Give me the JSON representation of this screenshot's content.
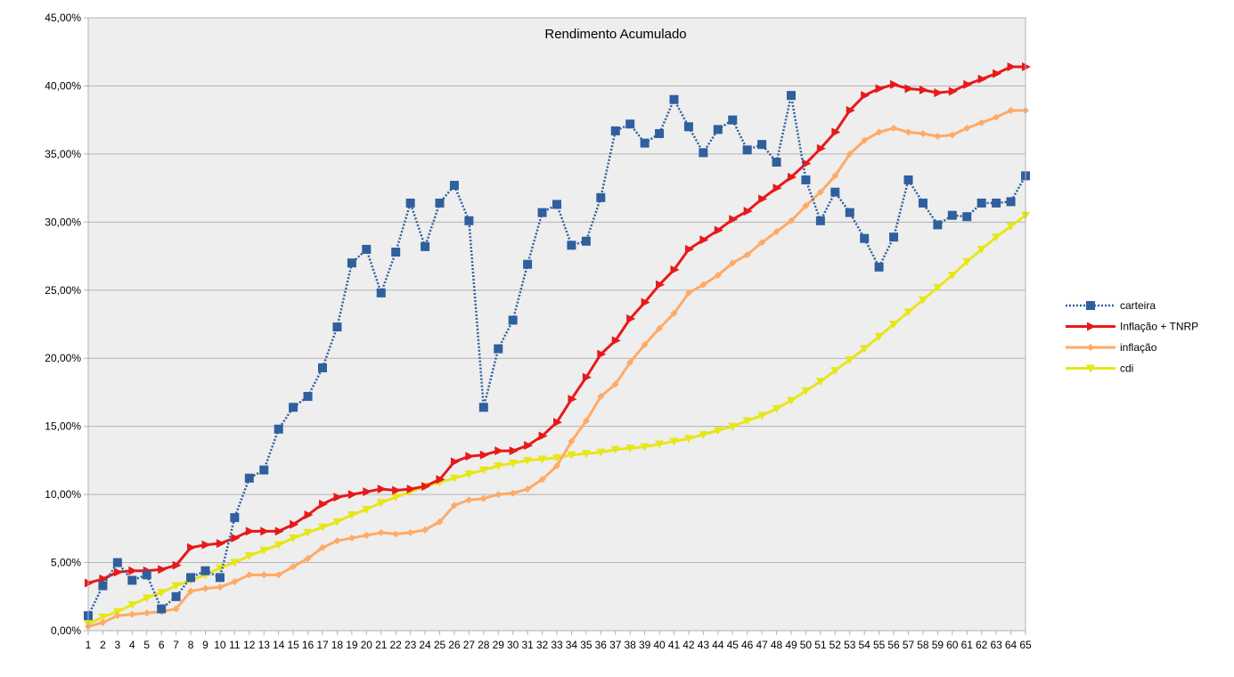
{
  "chart_data": {
    "type": "line",
    "title": "Rendimento Acumulado",
    "xlabel": "",
    "ylabel": "",
    "ylim": [
      0,
      45
    ],
    "ytick_step": 5,
    "y_tick_labels": [
      "0,00%",
      "5,00%",
      "10,00%",
      "15,00%",
      "20,00%",
      "25,00%",
      "30,00%",
      "35,00%",
      "40,00%",
      "45,00%"
    ],
    "grid": true,
    "legend_position": "right",
    "x": [
      1,
      2,
      3,
      4,
      5,
      6,
      7,
      8,
      9,
      10,
      11,
      12,
      13,
      14,
      15,
      16,
      17,
      18,
      19,
      20,
      21,
      22,
      23,
      24,
      25,
      26,
      27,
      28,
      29,
      30,
      31,
      32,
      33,
      34,
      35,
      36,
      37,
      38,
      39,
      40,
      41,
      42,
      43,
      44,
      45,
      46,
      47,
      48,
      49,
      50,
      51,
      52,
      53,
      54,
      55,
      56,
      57,
      58,
      59,
      60,
      61,
      62,
      63,
      64,
      65
    ],
    "series": [
      {
        "name": "carteira",
        "color": "#2f5f9e",
        "marker": "square",
        "dashed": true,
        "values": [
          1.1,
          3.3,
          5.0,
          3.7,
          4.1,
          1.6,
          2.5,
          3.9,
          4.4,
          3.9,
          8.3,
          11.2,
          11.8,
          14.8,
          16.4,
          17.2,
          19.3,
          22.3,
          27.0,
          28.0,
          24.8,
          27.8,
          31.4,
          28.2,
          31.4,
          32.7,
          30.1,
          16.4,
          20.7,
          22.8,
          26.9,
          30.7,
          31.3,
          28.3,
          28.6,
          31.8,
          36.7,
          37.2,
          35.8,
          36.5,
          39.0,
          37.0,
          35.1,
          36.8,
          37.5,
          35.3,
          35.7,
          34.4,
          39.3,
          33.1,
          30.1,
          32.2,
          30.7,
          28.8,
          26.7,
          28.9,
          33.1,
          31.4,
          29.8,
          30.5,
          30.4,
          31.4,
          31.4,
          31.5,
          33.4
        ]
      },
      {
        "name": "Inflação + TNRP",
        "color": "#e8191a",
        "marker": "triangle-right",
        "dashed": false,
        "values": [
          3.5,
          3.8,
          4.3,
          4.4,
          4.4,
          4.5,
          4.8,
          6.1,
          6.3,
          6.4,
          6.8,
          7.3,
          7.3,
          7.3,
          7.8,
          8.5,
          9.3,
          9.8,
          10.0,
          10.2,
          10.4,
          10.3,
          10.4,
          10.6,
          11.1,
          12.4,
          12.8,
          12.9,
          13.2,
          13.2,
          13.6,
          14.3,
          15.3,
          17.0,
          18.6,
          20.3,
          21.3,
          22.9,
          24.1,
          25.4,
          26.5,
          28.0,
          28.7,
          29.4,
          30.2,
          30.8,
          31.7,
          32.5,
          33.3,
          34.3,
          35.4,
          36.6,
          38.2,
          39.3,
          39.8,
          40.1,
          39.8,
          39.7,
          39.5,
          39.6,
          40.1,
          40.5,
          40.9,
          41.4,
          41.4
        ]
      },
      {
        "name": "inflação",
        "color": "#ffaa66",
        "marker": "diamond",
        "dashed": false,
        "values": [
          0.3,
          0.6,
          1.1,
          1.2,
          1.3,
          1.4,
          1.6,
          2.9,
          3.1,
          3.2,
          3.6,
          4.1,
          4.1,
          4.1,
          4.7,
          5.3,
          6.1,
          6.6,
          6.8,
          7.0,
          7.2,
          7.1,
          7.2,
          7.4,
          8.0,
          9.2,
          9.6,
          9.7,
          10.0,
          10.1,
          10.4,
          11.1,
          12.1,
          13.9,
          15.4,
          17.2,
          18.1,
          19.7,
          21.0,
          22.2,
          23.3,
          24.8,
          25.4,
          26.1,
          27.0,
          27.6,
          28.5,
          29.3,
          30.1,
          31.2,
          32.2,
          33.4,
          35.0,
          36.0,
          36.6,
          36.9,
          36.6,
          36.5,
          36.3,
          36.4,
          36.9,
          37.3,
          37.7,
          38.2,
          38.2
        ]
      },
      {
        "name": "cdi",
        "color": "#e6e619",
        "marker": "triangle-down",
        "dashed": false,
        "values": [
          0.5,
          1.0,
          1.4,
          1.9,
          2.4,
          2.8,
          3.3,
          3.7,
          4.1,
          4.6,
          5.0,
          5.5,
          5.9,
          6.3,
          6.8,
          7.2,
          7.6,
          8.0,
          8.5,
          8.9,
          9.4,
          9.8,
          10.2,
          10.6,
          10.9,
          11.2,
          11.5,
          11.8,
          12.1,
          12.3,
          12.5,
          12.6,
          12.7,
          12.9,
          13.0,
          13.1,
          13.3,
          13.4,
          13.5,
          13.7,
          13.9,
          14.1,
          14.4,
          14.7,
          15.0,
          15.4,
          15.8,
          16.3,
          16.9,
          17.6,
          18.3,
          19.1,
          19.9,
          20.7,
          21.6,
          22.5,
          23.4,
          24.3,
          25.2,
          26.1,
          27.1,
          28.0,
          28.9,
          29.7,
          30.5
        ]
      }
    ]
  }
}
